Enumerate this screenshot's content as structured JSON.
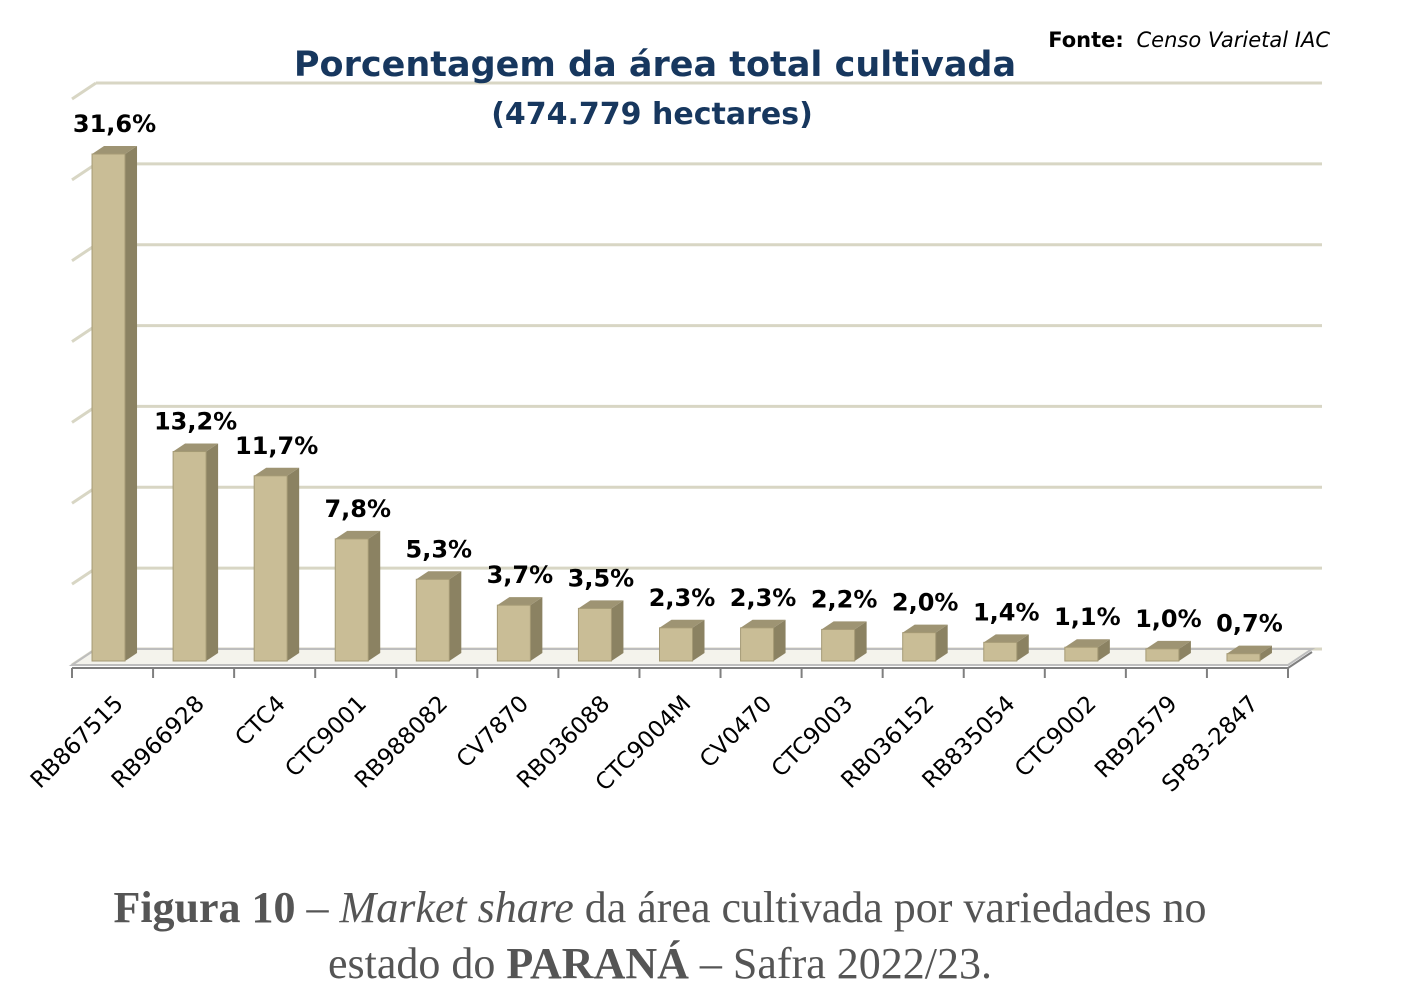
{
  "chart_data": {
    "type": "bar",
    "title": "Porcentagem da área total cultivada",
    "subtitle": "(474.779 hectares)",
    "source_label": "Fonte:",
    "source_text": "Censo Varietal IAC",
    "categories": [
      "RB867515",
      "RB966928",
      "CTC4",
      "CTC9001",
      "RB988082",
      "CV7870",
      "RB036088",
      "CTC9004M",
      "CV0470",
      "CTC9003",
      "RB036152",
      "RB835054",
      "CTC9002",
      "RB92579",
      "SP83-2847"
    ],
    "values": [
      31.6,
      13.2,
      11.7,
      7.8,
      5.3,
      3.7,
      3.5,
      2.3,
      2.3,
      2.2,
      2.0,
      1.4,
      1.1,
      1.0,
      0.7
    ],
    "data_labels": [
      "31,6%",
      "13,2%",
      "11,7%",
      "7,8%",
      "5,3%",
      "3,7%",
      "3,5%",
      "2,3%",
      "2,3%",
      "2,2%",
      "2,0%",
      "1,4%",
      "1,1%",
      "1,0%",
      "0,7%"
    ],
    "ylim": [
      0,
      35
    ],
    "grid": true,
    "style": "3d-column",
    "colors": {
      "bar_front": "#c9bd96",
      "bar_side": "#8b8262",
      "bar_top": "#9e9473",
      "title": "#17375e",
      "grid": "#d8d6c4"
    }
  },
  "caption": {
    "label": "Figura 10",
    "dash1": " – ",
    "italic": "Market share",
    "text1": " da área cultivada por variedades no",
    "text2": "estado do ",
    "state": "PARANÁ",
    "text3": " – Safra 2022/23."
  }
}
